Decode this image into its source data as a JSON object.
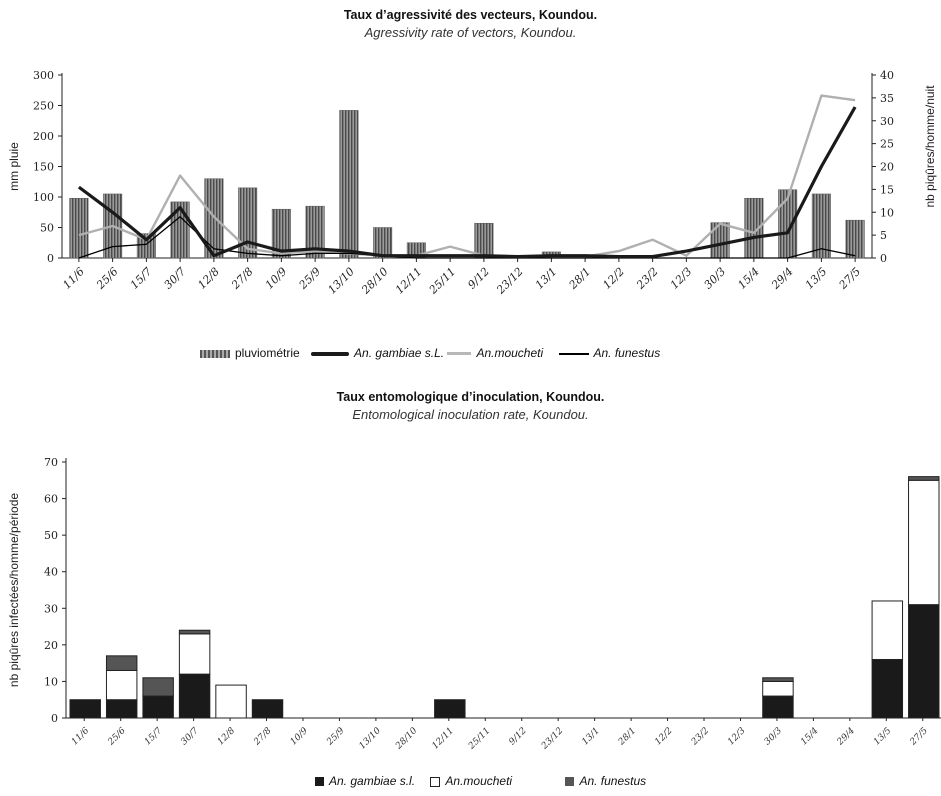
{
  "chart_data": [
    {
      "type": "bar",
      "title": "Taux d’agressivité des vecteurs, Koundou.",
      "subtitle": "Agressivity rate of vectors, Koundou.",
      "ylabel": "mm pluie",
      "y2label": "nb piqûres/homme/nuit",
      "ylim": [
        0,
        300
      ],
      "y2lim": [
        0,
        40
      ],
      "yticks": [
        "0",
        "50",
        "100",
        "150",
        "200",
        "250",
        "300"
      ],
      "y2ticks": [
        "0",
        "5",
        "10",
        "15",
        "20",
        "25",
        "30",
        "35",
        "40"
      ],
      "categories": [
        "11/6",
        "25/6",
        "15/7",
        "30/7",
        "12/8",
        "27/8",
        "10/9",
        "25/9",
        "13/10",
        "28/10",
        "12/11",
        "25/11",
        "9/12",
        "23/12",
        "13/1",
        "28/1",
        "12/2",
        "23/2",
        "12/3",
        "30/3",
        "15/4",
        "29/4",
        "13/5",
        "27/5"
      ],
      "series": [
        {
          "name": "pluviométrie",
          "kind": "bar",
          "axis": "left",
          "color": "#7a7a7a",
          "values": [
            98,
            105,
            40,
            92,
            130,
            115,
            80,
            85,
            242,
            50,
            25,
            0,
            57,
            0,
            10,
            0,
            0,
            0,
            0,
            58,
            98,
            112,
            105,
            62
          ]
        },
        {
          "name": "An. gambiae s.L.",
          "kind": "line",
          "axis": "right",
          "color": "#1a1a1a",
          "values": [
            15.5,
            10,
            4,
            11,
            0.5,
            3.5,
            1.5,
            2,
            1.5,
            0.5,
            0.5,
            0.5,
            0.5,
            0.3,
            0.5,
            0.5,
            0.3,
            0.3,
            1.5,
            3,
            4.5,
            5.5,
            20,
            33
          ]
        },
        {
          "name": "An.moucheti",
          "kind": "line",
          "axis": "right",
          "color": "#b8b8b8",
          "values": [
            5,
            7,
            4,
            18,
            9,
            2,
            1,
            1.5,
            1,
            0.5,
            0.5,
            2.5,
            0.5,
            0.3,
            0.3,
            0.3,
            1.5,
            4,
            0.5,
            7.5,
            5.5,
            13,
            35.5,
            34.5
          ]
        },
        {
          "name": "An. funestus",
          "kind": "line",
          "axis": "right",
          "color": "#000000",
          "values": [
            0,
            2.5,
            3,
            9,
            2,
            1,
            0.5,
            1,
            1,
            0.5,
            0,
            0,
            0,
            0,
            0,
            0,
            0,
            0,
            0,
            0,
            0,
            0,
            2,
            0.5
          ]
        }
      ],
      "legend_position": "bottom"
    },
    {
      "type": "bar",
      "stacked": true,
      "title": "Taux entomologique d’inoculation, Koundou.",
      "subtitle": "Entomological inoculation rate, Koundou.",
      "ylabel": "nb piqûres infectées/homme/période",
      "ylim": [
        0,
        70
      ],
      "yticks": [
        "0",
        "10",
        "20",
        "30",
        "40",
        "50",
        "60",
        "70"
      ],
      "categories": [
        "11/6",
        "25/6",
        "15/7",
        "30/7",
        "12/8",
        "27/8",
        "10/9",
        "25/9",
        "13/10",
        "28/10",
        "12/11",
        "25/11",
        "9/12",
        "23/12",
        "13/1",
        "28/1",
        "12/2",
        "23/2",
        "12/3",
        "30/3",
        "15/4",
        "29/4",
        "13/5",
        "27/5"
      ],
      "series": [
        {
          "name": "An. gambiae s.l.",
          "color": "#1a1a1a",
          "values": [
            5,
            5,
            6,
            12,
            0,
            5,
            0,
            0,
            0,
            0,
            5,
            0,
            0,
            0,
            0,
            0,
            0,
            0,
            0,
            6,
            0,
            0,
            16,
            31
          ]
        },
        {
          "name": "An.moucheti",
          "color": "#ffffff",
          "values": [
            0,
            8,
            0,
            11,
            9,
            0,
            0,
            0,
            0,
            0,
            0,
            0,
            0,
            0,
            0,
            0,
            0,
            0,
            0,
            4,
            0,
            0,
            16,
            34
          ]
        },
        {
          "name": "An. funestus",
          "color": "#555555",
          "values": [
            0,
            4,
            5,
            1,
            0,
            0,
            0,
            0,
            0,
            0,
            0,
            0,
            0,
            0,
            0,
            0,
            0,
            0,
            0,
            1,
            0,
            0,
            0,
            1
          ]
        }
      ],
      "legend_position": "bottom"
    }
  ]
}
